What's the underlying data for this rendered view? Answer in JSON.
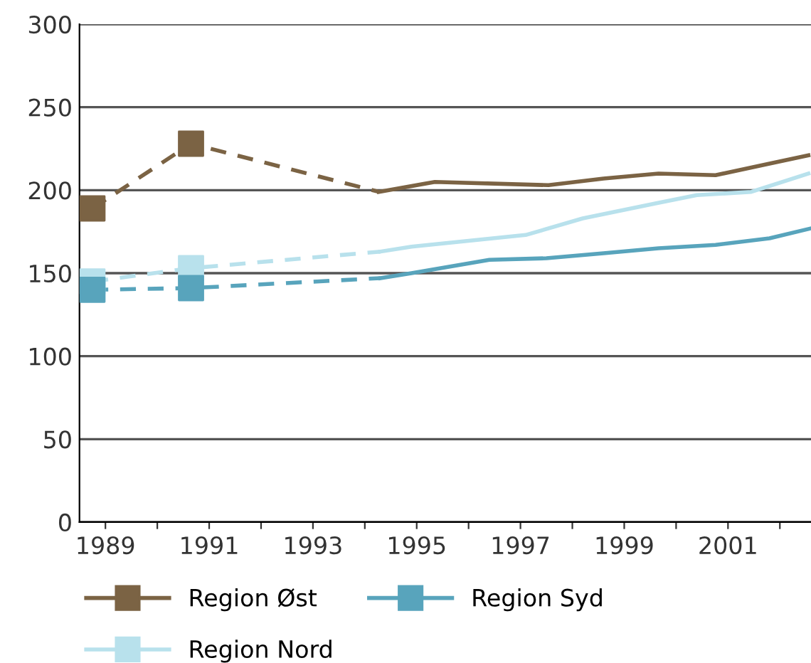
{
  "chart_data": {
    "type": "line",
    "series": [
      {
        "color": "#7b6344",
        "line_style": "dashed",
        "x": [
          1988.75,
          1990.65,
          1994.27
        ],
        "values": [
          189,
          228,
          199
        ]
      },
      {
        "color": "#7b6344",
        "line_style": "solid",
        "x": [
          1994.27,
          1995.35,
          1997.54,
          1998.6,
          1999.66,
          2000.76,
          2001.8,
          2002.55
        ],
        "values": [
          199,
          205,
          203,
          207,
          210,
          209,
          216,
          221
        ]
      },
      {
        "color": "#b8e1ec",
        "line_style": "dashed",
        "x": [
          1988.75,
          1990.65,
          1994.3
        ],
        "values": [
          145,
          153,
          163
        ]
      },
      {
        "color": "#b8e1ec",
        "line_style": "solid",
        "x": [
          1994.3,
          1994.9,
          1997.1,
          1998.2,
          1999.6,
          2000.4,
          2001.45,
          2002.55
        ],
        "values": [
          163,
          166,
          173,
          183,
          192,
          197,
          199,
          210
        ]
      },
      {
        "color": "#58a4bc",
        "line_style": "dashed",
        "x": [
          1988.75,
          1990.65,
          1994.3
        ],
        "values": [
          140,
          141,
          147
        ]
      },
      {
        "color": "#58a4bc",
        "line_style": "solid",
        "x": [
          1994.3,
          1994.9,
          1996.4,
          1997.5,
          1998.6,
          1999.66,
          2000.76,
          2001.8,
          2002.6
        ],
        "values": [
          147,
          150,
          158,
          159,
          162,
          165,
          167,
          171,
          177
        ]
      },
      {
        "type": "scatter",
        "name": "Region Øst",
        "color": "#7b6344",
        "marker": "square",
        "x": [
          1988.75,
          1990.65
        ],
        "values": [
          189,
          228
        ]
      },
      {
        "type": "scatter",
        "name": "Region Syd",
        "color": "#58a4bc",
        "marker": "square",
        "x": [
          1988.75,
          1990.65
        ],
        "values": [
          140,
          141
        ]
      },
      {
        "type": "scatter",
        "name": "Region Nord",
        "color": "#b8e1ec",
        "marker": "square",
        "x": [
          1988.75,
          1990.65
        ],
        "values": [
          145,
          153
        ]
      }
    ],
    "xlim": [
      1988.5,
      2002.6
    ],
    "xticks": [
      1989,
      {
        "value": 1990,
        "label": null
      },
      1991,
      {
        "value": 1992,
        "label": null
      },
      1993,
      {
        "value": 1994,
        "label": null
      },
      1995,
      {
        "value": 1996,
        "label": null
      },
      1997,
      {
        "value": 1998,
        "label": null
      },
      1999,
      {
        "value": 2000,
        "label": null
      },
      2001,
      {
        "value": 2002,
        "label": null
      }
    ],
    "ylim": [
      0,
      300
    ],
    "yticks": [
      0,
      50,
      100,
      150,
      200,
      250,
      300
    ],
    "grid": "y",
    "legend": "bottom"
  }
}
